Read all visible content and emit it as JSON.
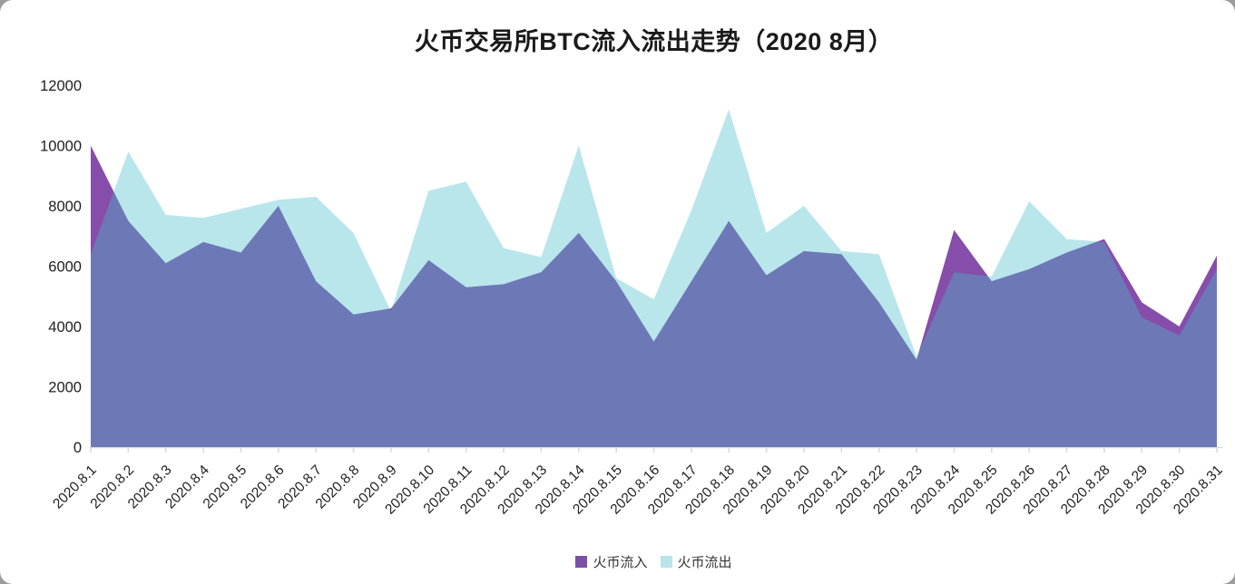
{
  "title": "火币交易所BTC流入流出走势（2020 8月）",
  "legend": {
    "items": [
      {
        "label": "火币流入",
        "swatch_color": "#7C4FA8"
      },
      {
        "label": "火币流出",
        "swatch_color": "#B8E4EA"
      }
    ]
  },
  "colors": {
    "inflow_fill": "#864DAB",
    "outflow_fill": "rgba(71,190,202,0.385)",
    "outflow_flat": "#B8E4EA",
    "overlap": "#7080B8",
    "axis": "#D9D9D9",
    "text": "#202020"
  },
  "chart_data": {
    "type": "area",
    "title": "火币交易所BTC流入流出走势（2020 8月）",
    "categories": [
      "2020.8.1",
      "2020.8.2",
      "2020.8.3",
      "2020.8.4",
      "2020.8.5",
      "2020.8.6",
      "2020.8.7",
      "2020.8.8",
      "2020.8.9",
      "2020.8.10",
      "2020.8.11",
      "2020.8.12",
      "2020.8.13",
      "2020.8.14",
      "2020.8.15",
      "2020.8.16",
      "2020.8.17",
      "2020.8.18",
      "2020.8.19",
      "2020.8.20",
      "2020.8.21",
      "2020.8.22",
      "2020.8.23",
      "2020.8.24",
      "2020.8.25",
      "2020.8.26",
      "2020.8.27",
      "2020.8.28",
      "2020.8.29",
      "2020.8.30",
      "2020.8.31"
    ],
    "series": [
      {
        "name": "火币流入",
        "values": [
          10000,
          7500,
          6100,
          6800,
          6450,
          8000,
          5500,
          4400,
          4600,
          6200,
          5300,
          5400,
          5800,
          7100,
          5500,
          3500,
          5500,
          7500,
          5700,
          6500,
          6400,
          4800,
          2900,
          7200,
          5500,
          5900,
          6450,
          6900,
          4800,
          4000,
          6350
        ]
      },
      {
        "name": "火币流出",
        "values": [
          6400,
          9800,
          7700,
          7600,
          7900,
          8200,
          8300,
          7100,
          4500,
          8500,
          8800,
          6600,
          6300,
          10000,
          5600,
          4900,
          7850,
          11200,
          7100,
          8000,
          6500,
          6400,
          3000,
          5800,
          5650,
          8150,
          6900,
          6800,
          4300,
          3700,
          5900
        ]
      }
    ],
    "ylim": [
      0,
      12000
    ],
    "yticks": [
      "0",
      "2000",
      "4000",
      "6000",
      "8000",
      "10000",
      "12000"
    ],
    "grid": false,
    "legend_position": "bottom",
    "x_label_rotation": -45
  }
}
